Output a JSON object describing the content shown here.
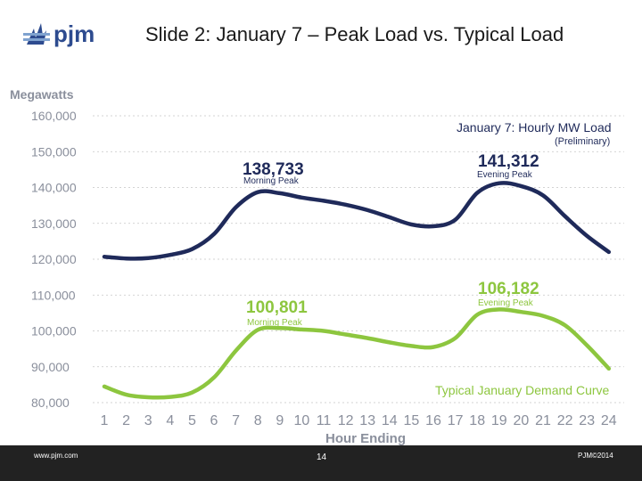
{
  "header": {
    "logo_text": "pjm",
    "slide_title": "Slide 2: January 7 – Peak Load vs. Typical Load"
  },
  "footer": {
    "url": "www.pjm.com",
    "page_number": "14",
    "copyright": "PJM©2014"
  },
  "colors": {
    "peak_series": "#1f2a5a",
    "typical_series": "#8dc63f",
    "axis_text": "#8a8f9c",
    "grid": "#c5c5c5",
    "footer_band": "#222222"
  },
  "chart_data": {
    "type": "line",
    "ylabel": "Megawatts",
    "xlabel": "Hour Ending",
    "ylim": [
      80000,
      160000
    ],
    "yticks": [
      160000,
      150000,
      140000,
      130000,
      120000,
      110000,
      100000,
      90000,
      80000
    ],
    "ytick_labels": [
      "160,000",
      "150,000",
      "140,000",
      "130,000",
      "120,000",
      "110,000",
      "100,000",
      "90,000",
      "80,000"
    ],
    "categories": [
      "1",
      "2",
      "3",
      "4",
      "5",
      "6",
      "7",
      "8",
      "9",
      "10",
      "11",
      "12",
      "13",
      "14",
      "15",
      "16",
      "17",
      "18",
      "19",
      "20",
      "21",
      "22",
      "23",
      "24"
    ],
    "grid": "horizontal dashed",
    "series": [
      {
        "name": "January 7: Hourly MW Load",
        "values": [
          120700,
          120200,
          120300,
          121200,
          122800,
          127000,
          134500,
          138700,
          138400,
          137200,
          136300,
          135200,
          133700,
          131700,
          129700,
          129200,
          131000,
          138500,
          141200,
          140400,
          137800,
          132000,
          126500,
          122000
        ]
      },
      {
        "name": "Typical January Demand Curve",
        "values": [
          84500,
          82200,
          81500,
          81600,
          82800,
          87000,
          94500,
          100300,
          100800,
          100400,
          100000,
          99000,
          98000,
          96800,
          95800,
          95500,
          98000,
          104500,
          106000,
          105300,
          104200,
          101600,
          96000,
          89500
        ]
      }
    ],
    "annotations": [
      {
        "id": "blue-morning",
        "value": "138,733",
        "label": "Morning Peak"
      },
      {
        "id": "blue-evening",
        "value": "141,312",
        "label": "Evening Peak"
      },
      {
        "id": "green-morning",
        "value": "100,801",
        "label": "Morning Peak"
      },
      {
        "id": "green-evening",
        "value": "106,182",
        "label": "Evening Peak"
      }
    ],
    "legend": {
      "blue_title": "January 7: Hourly MW Load",
      "blue_subtitle": "(Preliminary)",
      "green_title": "Typical January Demand Curve"
    }
  }
}
